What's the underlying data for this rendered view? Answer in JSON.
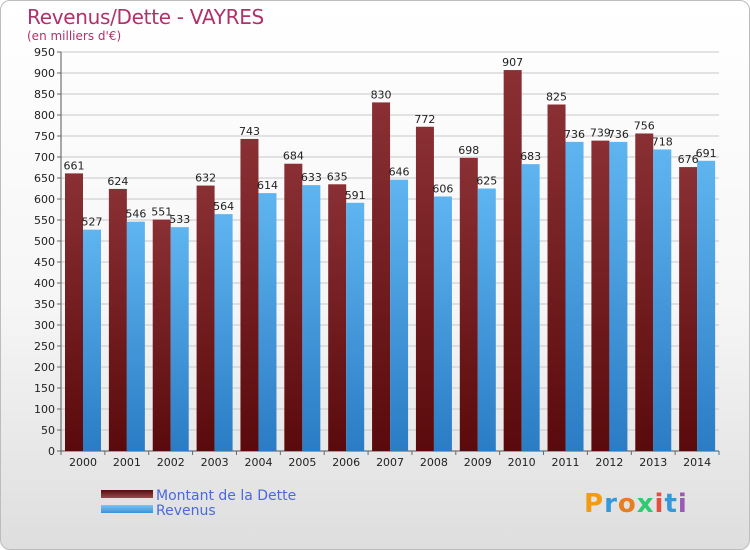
{
  "title": "Revenus/Dette - VAYRES",
  "subtitle": "(en milliers d'€)",
  "brand": "Proxiti",
  "colors": {
    "dette": "#7a1f24",
    "revenus": "#4aa3e6",
    "title": "#b0326b",
    "legend_text": "#4a69e0"
  },
  "chart_data": {
    "type": "bar",
    "title": "Revenus/Dette - VAYRES",
    "subtitle": "(en milliers d'€)",
    "categories": [
      "2000",
      "2001",
      "2002",
      "2003",
      "2004",
      "2005",
      "2006",
      "2007",
      "2008",
      "2009",
      "2010",
      "2011",
      "2012",
      "2013",
      "2014"
    ],
    "series": [
      {
        "name": "Montant de la Dette",
        "values": [
          661,
          624,
          551,
          632,
          743,
          684,
          635,
          830,
          772,
          698,
          907,
          825,
          739,
          756,
          676
        ]
      },
      {
        "name": "Revenus",
        "values": [
          527,
          546,
          533,
          564,
          614,
          633,
          591,
          646,
          606,
          625,
          683,
          736,
          736,
          718,
          691
        ]
      }
    ],
    "ylim": [
      0,
      950
    ],
    "yticks": [
      0,
      50,
      100,
      150,
      200,
      250,
      300,
      350,
      400,
      450,
      500,
      550,
      600,
      650,
      700,
      750,
      800,
      850,
      900,
      950
    ],
    "grid": true,
    "legend": "bottom-left"
  }
}
